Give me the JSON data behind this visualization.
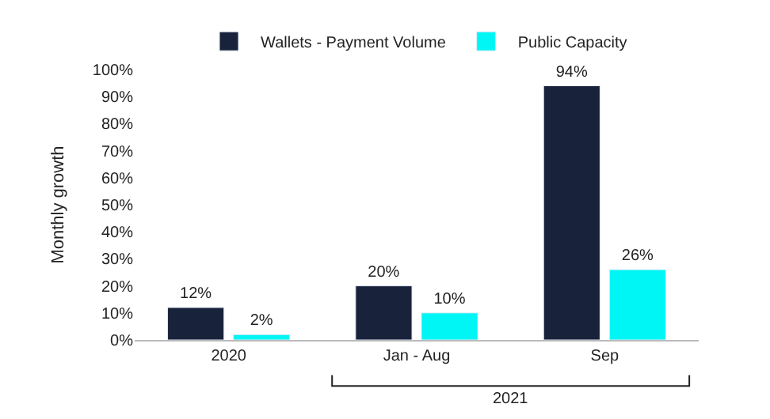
{
  "chart_data": {
    "type": "bar",
    "ylabel": "Monthly growth",
    "categories": [
      "2020",
      "Jan - Aug",
      "Sep"
    ],
    "series": [
      {
        "name": "Wallets - Payment Volume",
        "color": "#18223a",
        "values": [
          12,
          20,
          94
        ],
        "value_labels": [
          "12%",
          "20%",
          "94%"
        ]
      },
      {
        "name": "Public Capacity",
        "color": "#00f5f5",
        "values": [
          2,
          10,
          26
        ],
        "value_labels": [
          "2%",
          "10%",
          "26%"
        ]
      }
    ],
    "ylim": [
      0,
      100
    ],
    "yticks": [
      {
        "value": 0,
        "label": "0%"
      },
      {
        "value": 10,
        "label": "10%"
      },
      {
        "value": 20,
        "label": "20%"
      },
      {
        "value": 30,
        "label": "30%"
      },
      {
        "value": 40,
        "label": "40%"
      },
      {
        "value": 50,
        "label": "50%"
      },
      {
        "value": 60,
        "label": "60%"
      },
      {
        "value": 70,
        "label": "70%"
      },
      {
        "value": 80,
        "label": "80%"
      },
      {
        "value": 90,
        "label": "90%"
      },
      {
        "value": 100,
        "label": "100%"
      }
    ],
    "annotations": [
      "2021"
    ],
    "legend": "top"
  }
}
